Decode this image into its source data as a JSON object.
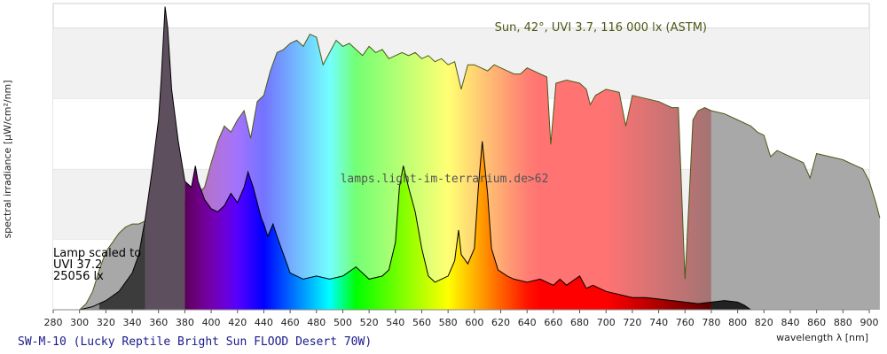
{
  "chart_data": {
    "type": "area",
    "ylabel": "spectral irradiance [µW/cm²/nm]",
    "xlabel": "wavelength λ [nm]",
    "xlim": [
      280,
      900
    ],
    "x_ticks": [
      280,
      300,
      320,
      340,
      360,
      380,
      400,
      420,
      440,
      460,
      480,
      500,
      520,
      540,
      560,
      580,
      600,
      620,
      640,
      660,
      680,
      700,
      720,
      740,
      760,
      780,
      800,
      820,
      840,
      860,
      880,
      900
    ],
    "ylim": [
      0,
      1
    ],
    "y_grid_bands": [
      [
        0.0,
        0.23
      ],
      [
        0.23,
        0.46
      ],
      [
        0.46,
        0.69
      ],
      [
        0.69,
        0.92
      ]
    ],
    "grid": true,
    "sun_label": "Sun, 42°, UVI 3.7, 116 000 lx (ASTM)",
    "watermark": "lamps.light-im-terrarium.de>62",
    "lamp_note": [
      "Lamp scaled to",
      "UVI 37.2",
      "25056 lx"
    ],
    "footer": "SW-M-10 (Lucky Reptile Bright Sun FLOOD Desert 70W)",
    "series": [
      {
        "name": "Sun, 42°, UVI 3.7, 116 000 lx (ASTM)",
        "points": [
          [
            280,
            0
          ],
          [
            300,
            0
          ],
          [
            305,
            0.02
          ],
          [
            310,
            0.06
          ],
          [
            315,
            0.13
          ],
          [
            320,
            0.19
          ],
          [
            325,
            0.22
          ],
          [
            330,
            0.25
          ],
          [
            335,
            0.27
          ],
          [
            340,
            0.28
          ],
          [
            345,
            0.28
          ],
          [
            350,
            0.29
          ],
          [
            355,
            0.3
          ],
          [
            360,
            0.28
          ],
          [
            365,
            0.31
          ],
          [
            370,
            0.33
          ],
          [
            375,
            0.32
          ],
          [
            380,
            0.35
          ],
          [
            385,
            0.4
          ],
          [
            390,
            0.38
          ],
          [
            395,
            0.4
          ],
          [
            400,
            0.48
          ],
          [
            405,
            0.55
          ],
          [
            410,
            0.6
          ],
          [
            415,
            0.58
          ],
          [
            420,
            0.62
          ],
          [
            425,
            0.65
          ],
          [
            430,
            0.56
          ],
          [
            435,
            0.68
          ],
          [
            440,
            0.7
          ],
          [
            445,
            0.78
          ],
          [
            450,
            0.84
          ],
          [
            455,
            0.85
          ],
          [
            460,
            0.87
          ],
          [
            465,
            0.88
          ],
          [
            470,
            0.86
          ],
          [
            475,
            0.9
          ],
          [
            480,
            0.89
          ],
          [
            485,
            0.8
          ],
          [
            490,
            0.84
          ],
          [
            495,
            0.88
          ],
          [
            500,
            0.86
          ],
          [
            505,
            0.87
          ],
          [
            510,
            0.85
          ],
          [
            515,
            0.83
          ],
          [
            520,
            0.86
          ],
          [
            525,
            0.84
          ],
          [
            530,
            0.85
          ],
          [
            535,
            0.82
          ],
          [
            540,
            0.83
          ],
          [
            545,
            0.84
          ],
          [
            550,
            0.83
          ],
          [
            555,
            0.84
          ],
          [
            560,
            0.82
          ],
          [
            565,
            0.83
          ],
          [
            570,
            0.81
          ],
          [
            575,
            0.82
          ],
          [
            580,
            0.8
          ],
          [
            585,
            0.81
          ],
          [
            590,
            0.72
          ],
          [
            595,
            0.8
          ],
          [
            600,
            0.8
          ],
          [
            605,
            0.79
          ],
          [
            610,
            0.78
          ],
          [
            615,
            0.8
          ],
          [
            620,
            0.79
          ],
          [
            625,
            0.78
          ],
          [
            630,
            0.77
          ],
          [
            635,
            0.77
          ],
          [
            640,
            0.79
          ],
          [
            645,
            0.78
          ],
          [
            650,
            0.77
          ],
          [
            655,
            0.76
          ],
          [
            658,
            0.54
          ],
          [
            662,
            0.74
          ],
          [
            670,
            0.75
          ],
          [
            680,
            0.74
          ],
          [
            685,
            0.72
          ],
          [
            688,
            0.67
          ],
          [
            692,
            0.7
          ],
          [
            700,
            0.72
          ],
          [
            710,
            0.71
          ],
          [
            715,
            0.6
          ],
          [
            720,
            0.7
          ],
          [
            730,
            0.69
          ],
          [
            740,
            0.68
          ],
          [
            745,
            0.67
          ],
          [
            750,
            0.66
          ],
          [
            755,
            0.66
          ],
          [
            760,
            0.1
          ],
          [
            763,
            0.35
          ],
          [
            766,
            0.62
          ],
          [
            770,
            0.65
          ],
          [
            775,
            0.66
          ],
          [
            780,
            0.65
          ],
          [
            790,
            0.64
          ],
          [
            800,
            0.62
          ],
          [
            810,
            0.6
          ],
          [
            815,
            0.58
          ],
          [
            820,
            0.57
          ],
          [
            825,
            0.5
          ],
          [
            830,
            0.52
          ],
          [
            840,
            0.5
          ],
          [
            850,
            0.48
          ],
          [
            855,
            0.43
          ],
          [
            860,
            0.51
          ],
          [
            870,
            0.5
          ],
          [
            880,
            0.49
          ],
          [
            890,
            0.47
          ],
          [
            895,
            0.46
          ],
          [
            900,
            0.42
          ],
          [
            905,
            0.35
          ],
          [
            908,
            0.3
          ]
        ]
      },
      {
        "name": "SW-M-10 (Lucky Reptile Bright Sun FLOOD Desert 70W)",
        "points": [
          [
            300,
            0
          ],
          [
            310,
            0.01
          ],
          [
            320,
            0.03
          ],
          [
            330,
            0.06
          ],
          [
            340,
            0.12
          ],
          [
            345,
            0.18
          ],
          [
            350,
            0.3
          ],
          [
            355,
            0.45
          ],
          [
            360,
            0.62
          ],
          [
            362,
            0.75
          ],
          [
            365,
            0.99
          ],
          [
            367,
            0.92
          ],
          [
            370,
            0.72
          ],
          [
            375,
            0.55
          ],
          [
            380,
            0.42
          ],
          [
            385,
            0.4
          ],
          [
            388,
            0.47
          ],
          [
            390,
            0.42
          ],
          [
            395,
            0.36
          ],
          [
            400,
            0.33
          ],
          [
            405,
            0.32
          ],
          [
            410,
            0.34
          ],
          [
            415,
            0.38
          ],
          [
            420,
            0.35
          ],
          [
            425,
            0.4
          ],
          [
            428,
            0.45
          ],
          [
            432,
            0.4
          ],
          [
            435,
            0.35
          ],
          [
            438,
            0.3
          ],
          [
            440,
            0.28
          ],
          [
            443,
            0.24
          ],
          [
            447,
            0.28
          ],
          [
            450,
            0.24
          ],
          [
            455,
            0.18
          ],
          [
            460,
            0.12
          ],
          [
            470,
            0.1
          ],
          [
            480,
            0.11
          ],
          [
            490,
            0.1
          ],
          [
            500,
            0.11
          ],
          [
            510,
            0.14
          ],
          [
            515,
            0.12
          ],
          [
            520,
            0.1
          ],
          [
            530,
            0.11
          ],
          [
            535,
            0.13
          ],
          [
            540,
            0.22
          ],
          [
            543,
            0.4
          ],
          [
            546,
            0.47
          ],
          [
            550,
            0.4
          ],
          [
            555,
            0.32
          ],
          [
            560,
            0.2
          ],
          [
            565,
            0.11
          ],
          [
            570,
            0.09
          ],
          [
            575,
            0.1
          ],
          [
            580,
            0.11
          ],
          [
            585,
            0.16
          ],
          [
            588,
            0.26
          ],
          [
            590,
            0.18
          ],
          [
            595,
            0.15
          ],
          [
            600,
            0.2
          ],
          [
            603,
            0.4
          ],
          [
            606,
            0.55
          ],
          [
            610,
            0.38
          ],
          [
            613,
            0.2
          ],
          [
            618,
            0.13
          ],
          [
            625,
            0.11
          ],
          [
            630,
            0.1
          ],
          [
            640,
            0.09
          ],
          [
            650,
            0.1
          ],
          [
            660,
            0.08
          ],
          [
            665,
            0.1
          ],
          [
            670,
            0.08
          ],
          [
            680,
            0.11
          ],
          [
            685,
            0.07
          ],
          [
            690,
            0.08
          ],
          [
            700,
            0.06
          ],
          [
            710,
            0.05
          ],
          [
            720,
            0.04
          ],
          [
            730,
            0.04
          ],
          [
            740,
            0.035
          ],
          [
            750,
            0.03
          ],
          [
            760,
            0.025
          ],
          [
            770,
            0.02
          ],
          [
            780,
            0.025
          ],
          [
            790,
            0.03
          ],
          [
            800,
            0.025
          ],
          [
            805,
            0.015
          ],
          [
            810,
            0
          ]
        ]
      }
    ]
  }
}
